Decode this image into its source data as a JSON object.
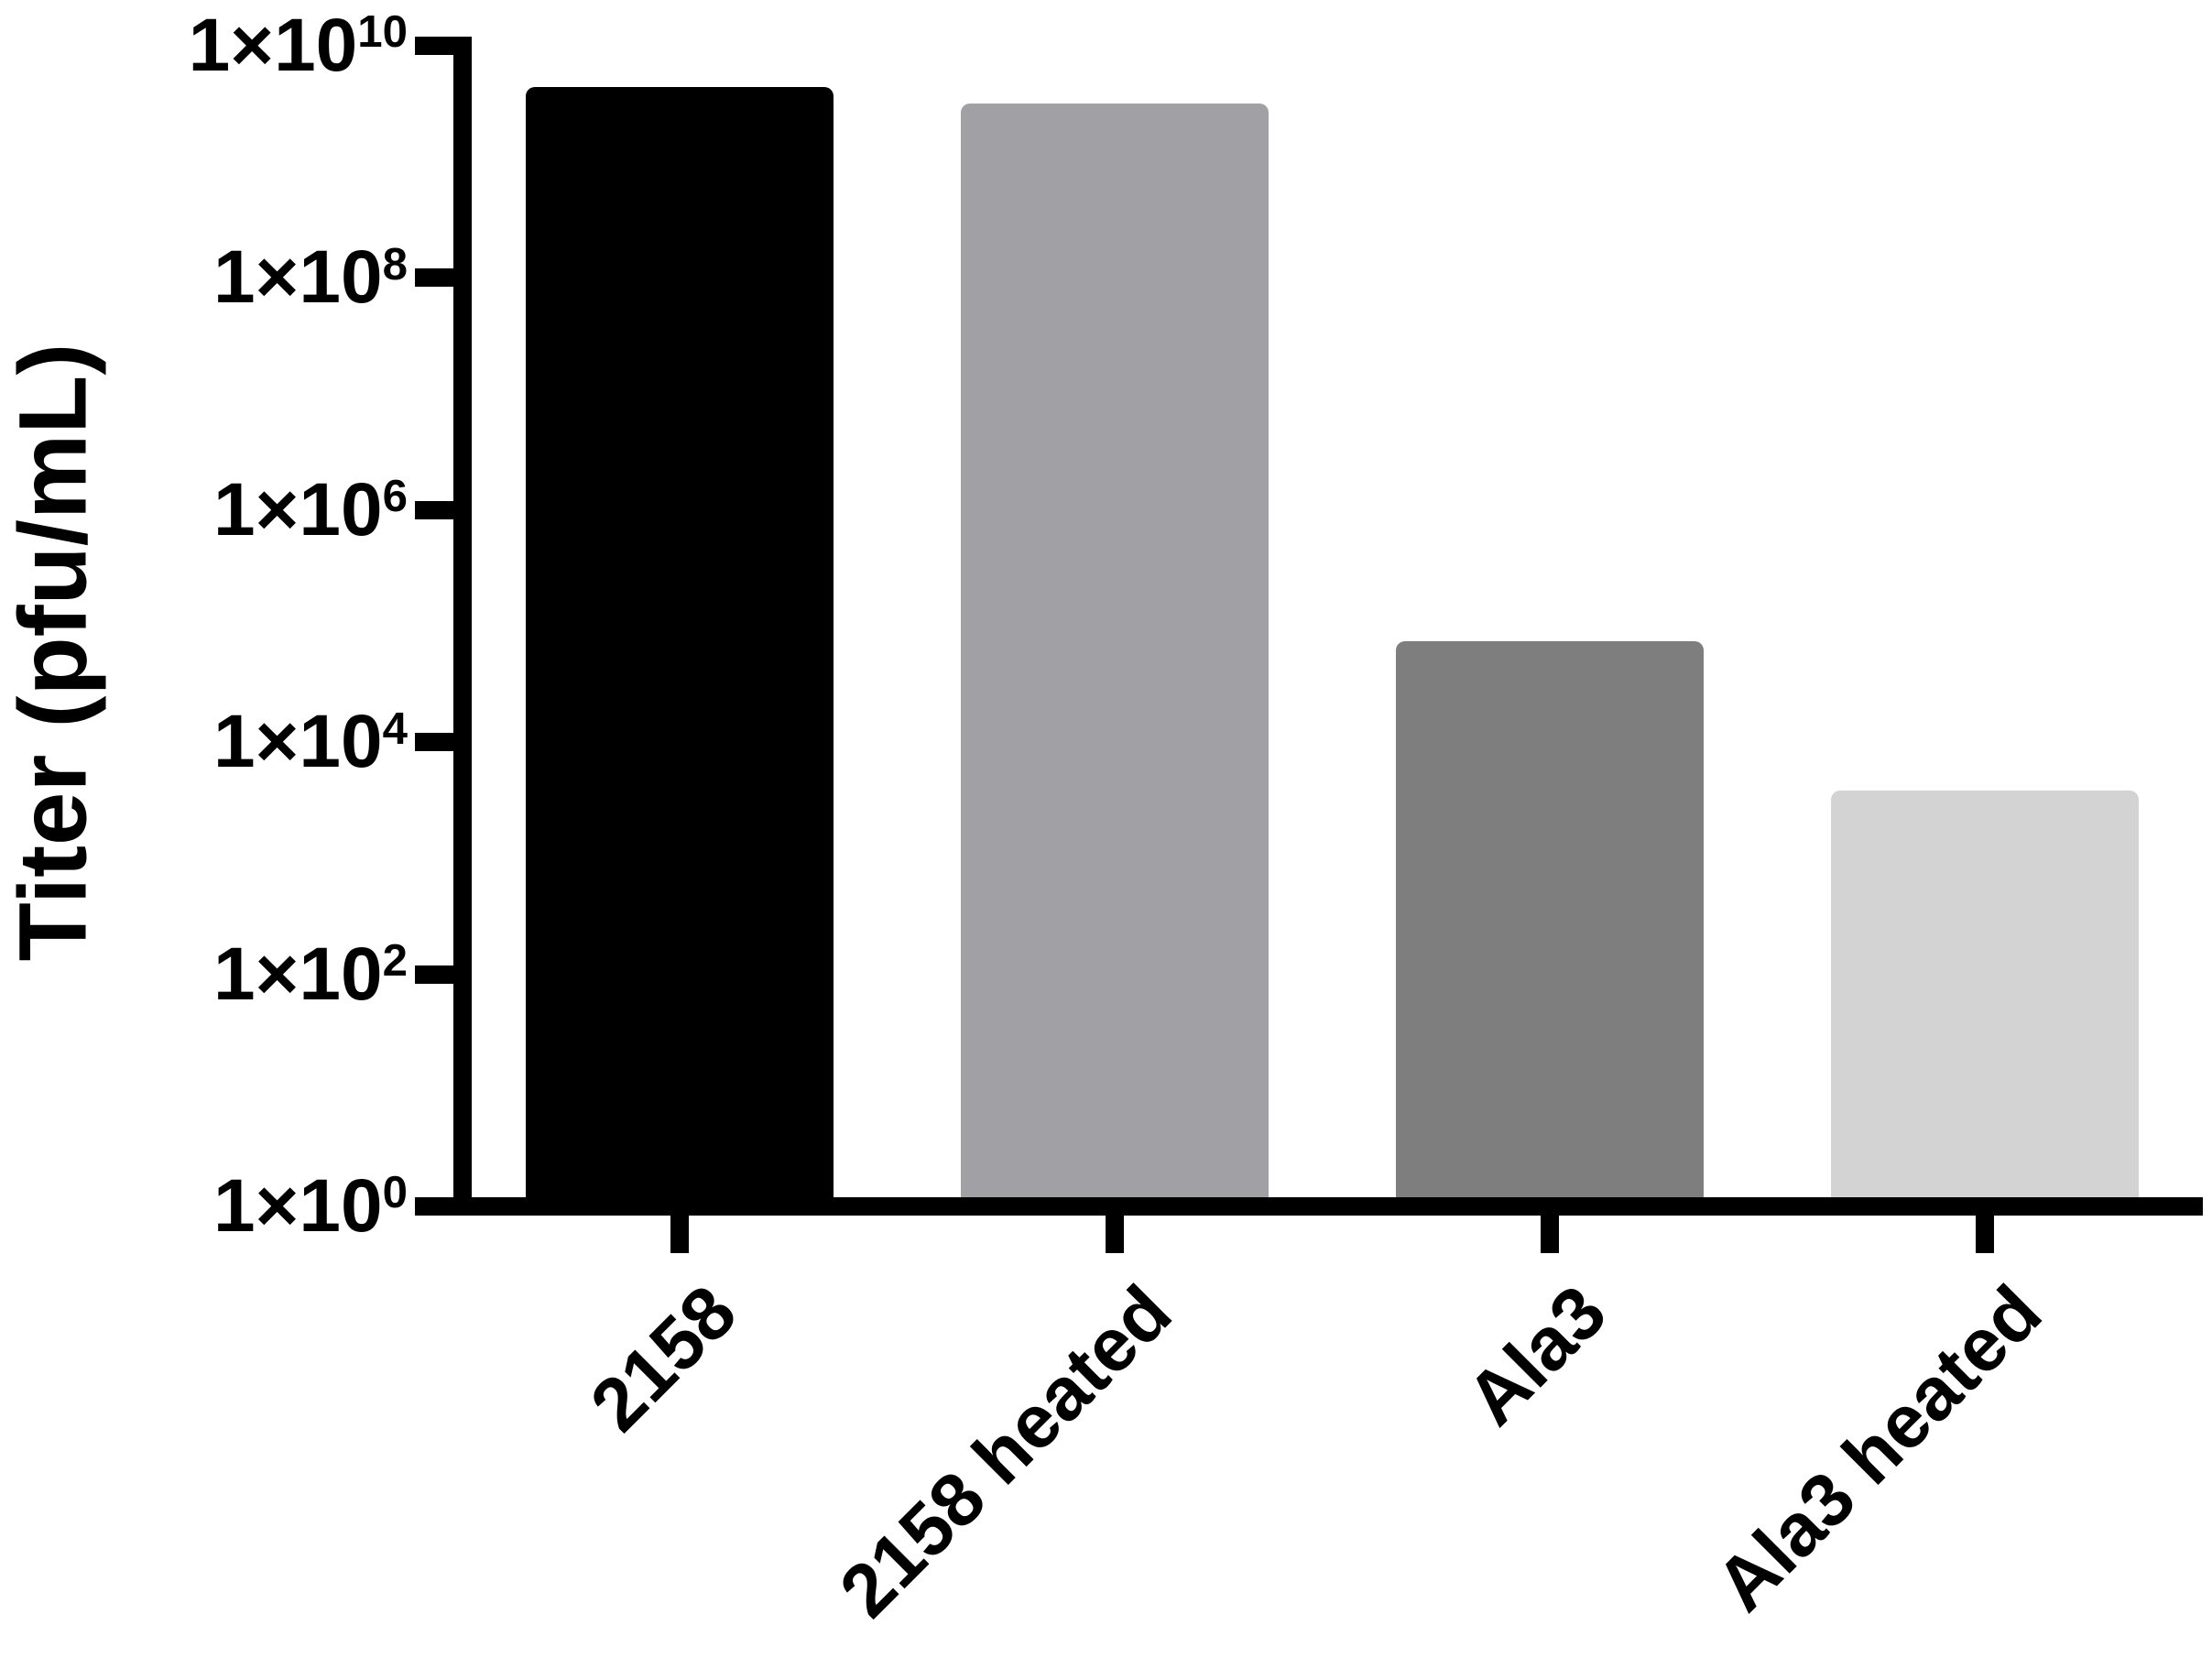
{
  "figure": {
    "background": "#ffffff",
    "axis_color": "#000000",
    "text_color": "#000000"
  },
  "chart_data": {
    "type": "bar",
    "title": "",
    "xlabel": "",
    "ylabel": "Titer (pfu/mL)",
    "y_scale": "log",
    "ylim": [
      1,
      10000000000
    ],
    "grid": false,
    "legend": false,
    "categories": [
      "2158",
      "2158 heated",
      "Ala3",
      "Ala3 heated"
    ],
    "values": [
      4400000000,
      3200000000,
      74000,
      3800
    ],
    "bar_colors": [
      "#000000",
      "#a0a0a5",
      "#7e7e7e",
      "#d3d3d3"
    ],
    "y_ticks": [
      {
        "base": "1×10",
        "exponent": "10",
        "value": 10000000000
      },
      {
        "base": "1×10",
        "exponent": "8",
        "value": 100000000
      },
      {
        "base": "1×10",
        "exponent": "6",
        "value": 1000000
      },
      {
        "base": "1×10",
        "exponent": "4",
        "value": 10000
      },
      {
        "base": "1×10",
        "exponent": "2",
        "value": 100
      },
      {
        "base": "1×10",
        "exponent": "0",
        "value": 1
      }
    ]
  }
}
